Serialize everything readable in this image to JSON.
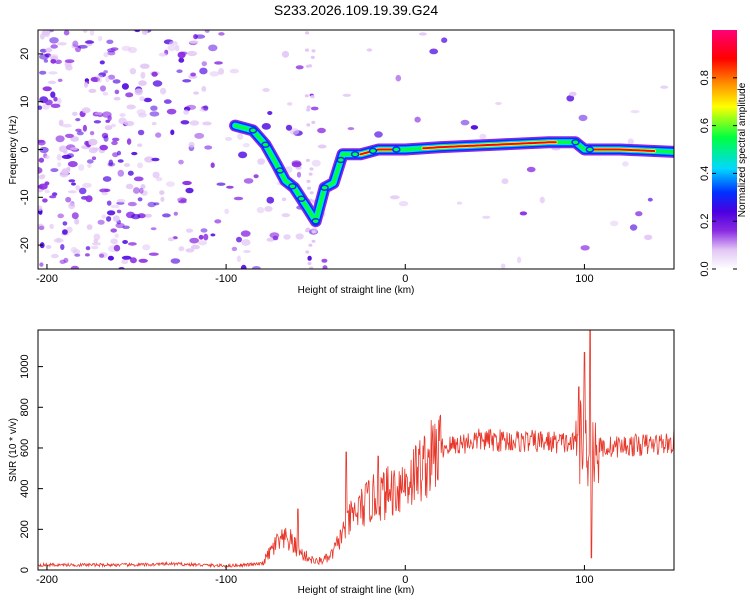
{
  "title": "S233.2026.109.19.39.G24",
  "chart_data": [
    {
      "type": "heatmap",
      "name": "spectrogram",
      "xlabel": "Height of straight line (km)",
      "ylabel": "Frequency (Hz)",
      "xlim": [
        -205,
        150
      ],
      "ylim": [
        -25,
        25
      ],
      "xticks": [
        -200,
        -100,
        0,
        100
      ],
      "yticks": [
        -20,
        -10,
        0,
        10,
        20
      ],
      "colorbar": {
        "label": "Normalized spectral amplitude",
        "range": [
          0,
          1
        ],
        "ticks": [
          0,
          0.2,
          0.4,
          0.6,
          0.8
        ],
        "tick_labels": [
          "0.0",
          "0.2",
          "0.4",
          "0.6",
          "0.8"
        ],
        "colormap": [
          "#ffffff",
          "#e2c6f5",
          "#8a2be2",
          "#4b00e0",
          "#0030ff",
          "#00d8ff",
          "#00ff40",
          "#ffff00",
          "#ff8800",
          "#ff0000",
          "#ff0077"
        ]
      },
      "dominant_frequency_track": [
        {
          "x": -95,
          "y": 5
        },
        {
          "x": -85,
          "y": 4
        },
        {
          "x": -78,
          "y": 1
        },
        {
          "x": -72,
          "y": -3
        },
        {
          "x": -67,
          "y": -6.5
        },
        {
          "x": -62,
          "y": -8
        },
        {
          "x": -55,
          "y": -12
        },
        {
          "x": -50,
          "y": -15
        },
        {
          "x": -45,
          "y": -8
        },
        {
          "x": -40,
          "y": -7
        },
        {
          "x": -35,
          "y": -1
        },
        {
          "x": -25,
          "y": -1
        },
        {
          "x": -15,
          "y": 0
        },
        {
          "x": 0,
          "y": 0
        },
        {
          "x": 20,
          "y": 0.5
        },
        {
          "x": 50,
          "y": 1
        },
        {
          "x": 80,
          "y": 1.5
        },
        {
          "x": 95,
          "y": 1.5
        },
        {
          "x": 100,
          "y": 0
        },
        {
          "x": 120,
          "y": 0
        },
        {
          "x": 150,
          "y": -0.5
        }
      ]
    },
    {
      "type": "line",
      "name": "snr",
      "xlabel": "Height of straight line (km)",
      "ylabel": "SNR (10 * v/v)",
      "xlim": [
        -205,
        150
      ],
      "ylim": [
        0,
        1180
      ],
      "xticks": [
        -200,
        -100,
        0,
        100
      ],
      "yticks": [
        0,
        200,
        400,
        600,
        800,
        1000
      ],
      "color": "#e8372a",
      "envelope": [
        {
          "x": -205,
          "y": 25
        },
        {
          "x": -150,
          "y": 25
        },
        {
          "x": -130,
          "y": 30
        },
        {
          "x": -100,
          "y": 20
        },
        {
          "x": -80,
          "y": 30
        },
        {
          "x": -72,
          "y": 130
        },
        {
          "x": -65,
          "y": 150
        },
        {
          "x": -58,
          "y": 80
        },
        {
          "x": -50,
          "y": 40
        },
        {
          "x": -42,
          "y": 60
        },
        {
          "x": -35,
          "y": 180
        },
        {
          "x": -30,
          "y": 260
        },
        {
          "x": -20,
          "y": 340
        },
        {
          "x": -10,
          "y": 380
        },
        {
          "x": 0,
          "y": 430
        },
        {
          "x": 10,
          "y": 510
        },
        {
          "x": 20,
          "y": 600
        },
        {
          "x": 40,
          "y": 640
        },
        {
          "x": 80,
          "y": 630
        },
        {
          "x": 98,
          "y": 620
        },
        {
          "x": 105,
          "y": 600
        },
        {
          "x": 150,
          "y": 625
        }
      ],
      "spikes": [
        {
          "x": -60,
          "y": 300
        },
        {
          "x": -33,
          "y": 580
        },
        {
          "x": -15,
          "y": 560
        },
        {
          "x": 97,
          "y": 900
        },
        {
          "x": 100,
          "y": 1070
        },
        {
          "x": 103,
          "y": 1180
        },
        {
          "x": 104,
          "y": 60
        }
      ]
    }
  ]
}
